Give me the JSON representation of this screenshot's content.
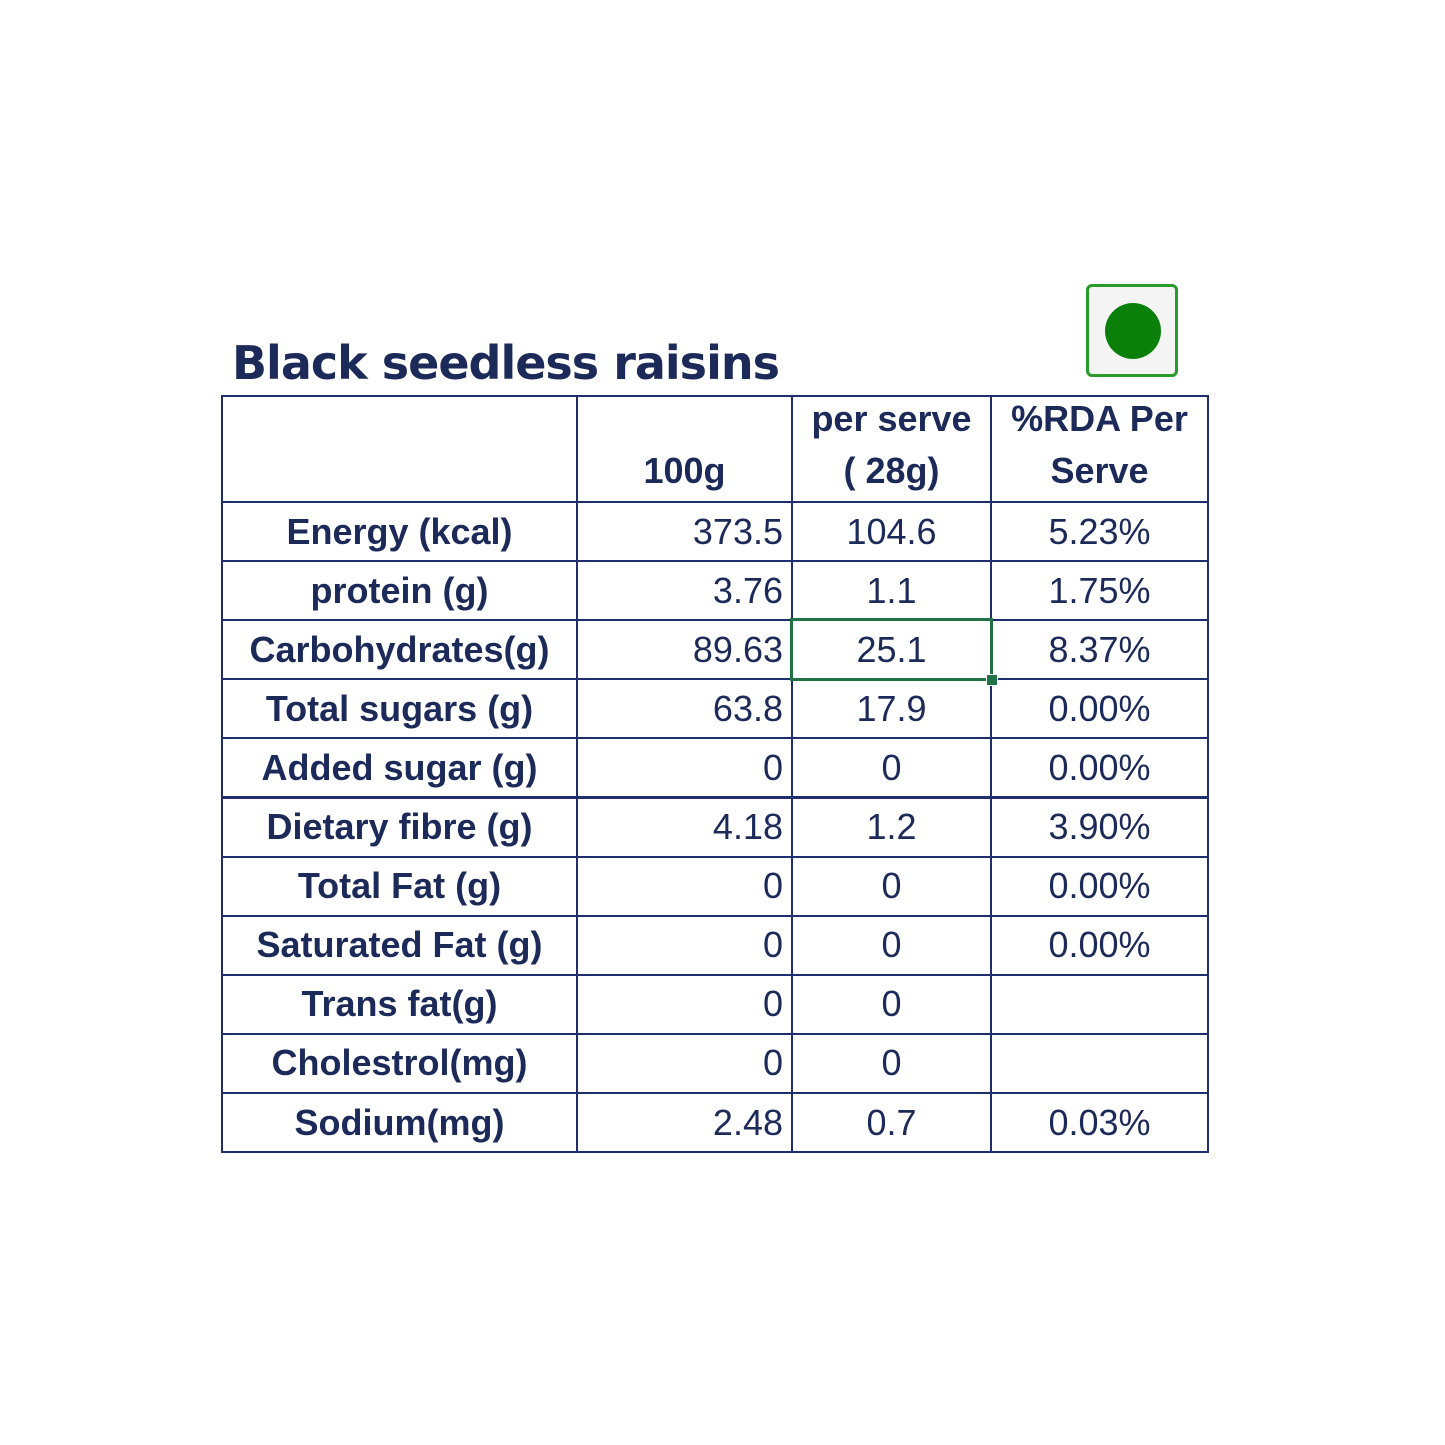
{
  "title": "Black seedless raisins",
  "table": {
    "header": [
      null,
      [
        "100g"
      ],
      [
        "per serve",
        "( 28g)"
      ],
      [
        "%RDA Per",
        "Serve"
      ]
    ],
    "rows": [
      [
        "Energy (kcal)",
        "373.5",
        "104.6",
        "5.23%"
      ],
      [
        "protein (g)",
        "3.76",
        "1.1",
        "1.75%"
      ],
      [
        "Carbohydrates(g)",
        "89.63",
        "25.1",
        "8.37%"
      ],
      [
        "Total sugars (g)",
        "63.8",
        "17.9",
        "0.00%"
      ],
      [
        "Added sugar (g)",
        "0",
        "0",
        "0.00%"
      ],
      [
        "Dietary fibre (g)",
        "4.18",
        "1.2",
        "3.90%"
      ],
      [
        "Total Fat (g)",
        "0",
        "0",
        "0.00%"
      ],
      [
        "Saturated Fat (g)",
        "0",
        "0",
        "0.00%"
      ],
      [
        "Trans fat(g)",
        "0",
        "0",
        null
      ],
      [
        "Cholestrol(mg)",
        "0",
        "0",
        null
      ],
      [
        "Sodium(mg)",
        "2.48",
        "0.7",
        "0.03%"
      ]
    ]
  }
}
